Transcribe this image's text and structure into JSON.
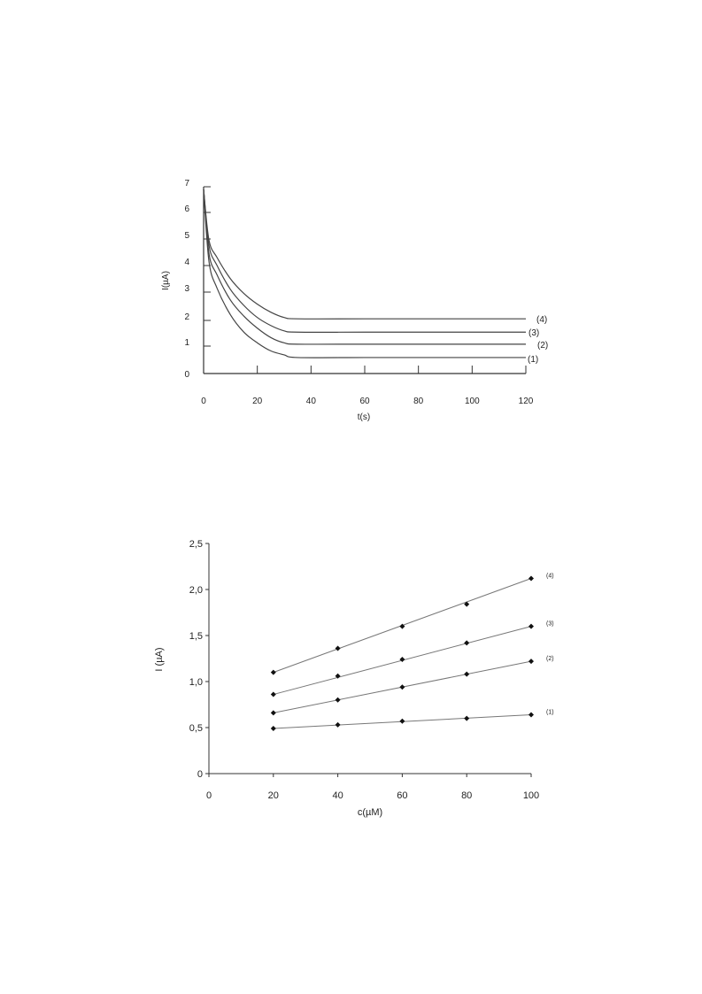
{
  "chart_data": [
    {
      "type": "line",
      "xlabel": "t(s)",
      "ylabel": "I(µA)",
      "xlim": [
        0,
        120
      ],
      "ylim": [
        0,
        7
      ],
      "x_ticks": [
        "0",
        "20",
        "40",
        "60",
        "80",
        "100",
        "120"
      ],
      "y_ticks": [
        "0",
        "1",
        "2",
        "3",
        "4",
        "5",
        "6",
        "7"
      ],
      "grid": false,
      "series": [
        {
          "name": "(1)",
          "x": [
            0,
            2,
            5,
            10,
            15,
            20,
            25,
            30,
            35,
            60,
            90,
            120
          ],
          "values": [
            6.9,
            4.2,
            3.2,
            2.2,
            1.55,
            1.15,
            0.85,
            0.7,
            0.6,
            0.6,
            0.6,
            0.6
          ]
        },
        {
          "name": "(2)",
          "x": [
            0,
            2,
            5,
            10,
            15,
            20,
            25,
            30,
            35,
            60,
            90,
            120
          ],
          "values": [
            6.9,
            4.5,
            3.7,
            2.75,
            2.15,
            1.7,
            1.35,
            1.15,
            1.1,
            1.1,
            1.1,
            1.1
          ]
        },
        {
          "name": "(3)",
          "x": [
            0,
            2,
            5,
            10,
            15,
            20,
            25,
            30,
            35,
            60,
            90,
            120
          ],
          "values": [
            6.9,
            4.8,
            4.05,
            3.15,
            2.55,
            2.1,
            1.8,
            1.6,
            1.55,
            1.55,
            1.55,
            1.55
          ]
        },
        {
          "name": "(4)",
          "x": [
            0,
            2,
            5,
            10,
            15,
            20,
            25,
            30,
            35,
            60,
            90,
            120
          ],
          "values": [
            6.9,
            5.0,
            4.35,
            3.55,
            3.0,
            2.6,
            2.3,
            2.1,
            2.05,
            2.05,
            2.05,
            2.05
          ]
        }
      ]
    },
    {
      "type": "scatter",
      "xlabel": "c(µM)",
      "ylabel": "I (µA)",
      "xlim": [
        0,
        100
      ],
      "ylim": [
        0,
        2.5
      ],
      "x_ticks": [
        "0",
        "20",
        "40",
        "60",
        "80",
        "100"
      ],
      "y_ticks": [
        "0",
        "0,5",
        "1,0",
        "1,5",
        "2,0",
        "2,5"
      ],
      "grid": false,
      "trendlines": true,
      "x": [
        20,
        40,
        60,
        80,
        100
      ],
      "series": [
        {
          "name": "(1)",
          "values": [
            0.49,
            0.53,
            0.57,
            0.6,
            0.64
          ]
        },
        {
          "name": "(2)",
          "values": [
            0.66,
            0.8,
            0.94,
            1.08,
            1.22
          ]
        },
        {
          "name": "(3)",
          "values": [
            0.86,
            1.06,
            1.24,
            1.42,
            1.6
          ]
        },
        {
          "name": "(4)",
          "values": [
            1.1,
            1.36,
            1.6,
            1.84,
            2.12
          ]
        }
      ]
    }
  ]
}
